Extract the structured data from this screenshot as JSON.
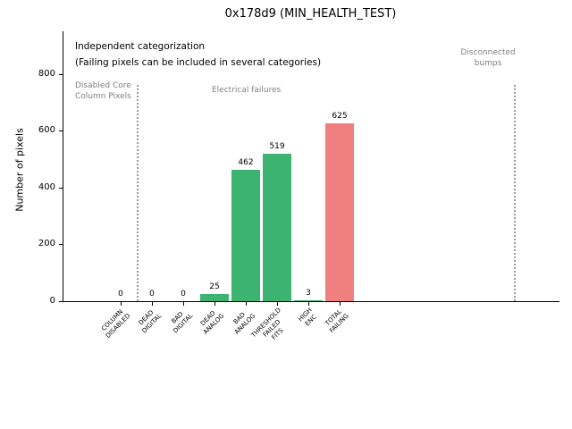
{
  "chart_data": {
    "type": "bar",
    "title": "0x178d9 (MIN_HEALTH_TEST)",
    "ylabel": "Number of pixels",
    "ylim": [
      0,
      950
    ],
    "yticks": [
      0,
      200,
      400,
      600,
      800
    ],
    "grid": false,
    "legend": "none",
    "categories": [
      "COLUMN\nDISABLED",
      "DEAD\nDIGITAL",
      "BAD\nDIGITAL",
      "DEAD\nANALOG",
      "BAD\nANALOG",
      "THRESHOLD\nFAILED\nFITS",
      "HIGH\nENC",
      "TOTAL\nFAILING"
    ],
    "values": [
      0,
      0,
      0,
      25,
      462,
      519,
      3,
      625
    ],
    "bar_colors": [
      "#3cb371",
      "#3cb371",
      "#3cb371",
      "#3cb371",
      "#3cb371",
      "#3cb371",
      "#3cb371",
      "#f08080"
    ],
    "annotations": {
      "note_line1": "Independent categorization",
      "note_line2": "(Failing pixels can be included in several categories)"
    },
    "sections": [
      {
        "label": "Disabled Core\nColumn Pixels"
      },
      {
        "label": "Electrical failures"
      },
      {
        "label": "Disconnected\nbumps"
      }
    ],
    "colors": {
      "bar_green": "#3cb371",
      "bar_red": "#f08080",
      "section_text": "#7f7f7f",
      "divider": "#9a9a9a"
    }
  }
}
